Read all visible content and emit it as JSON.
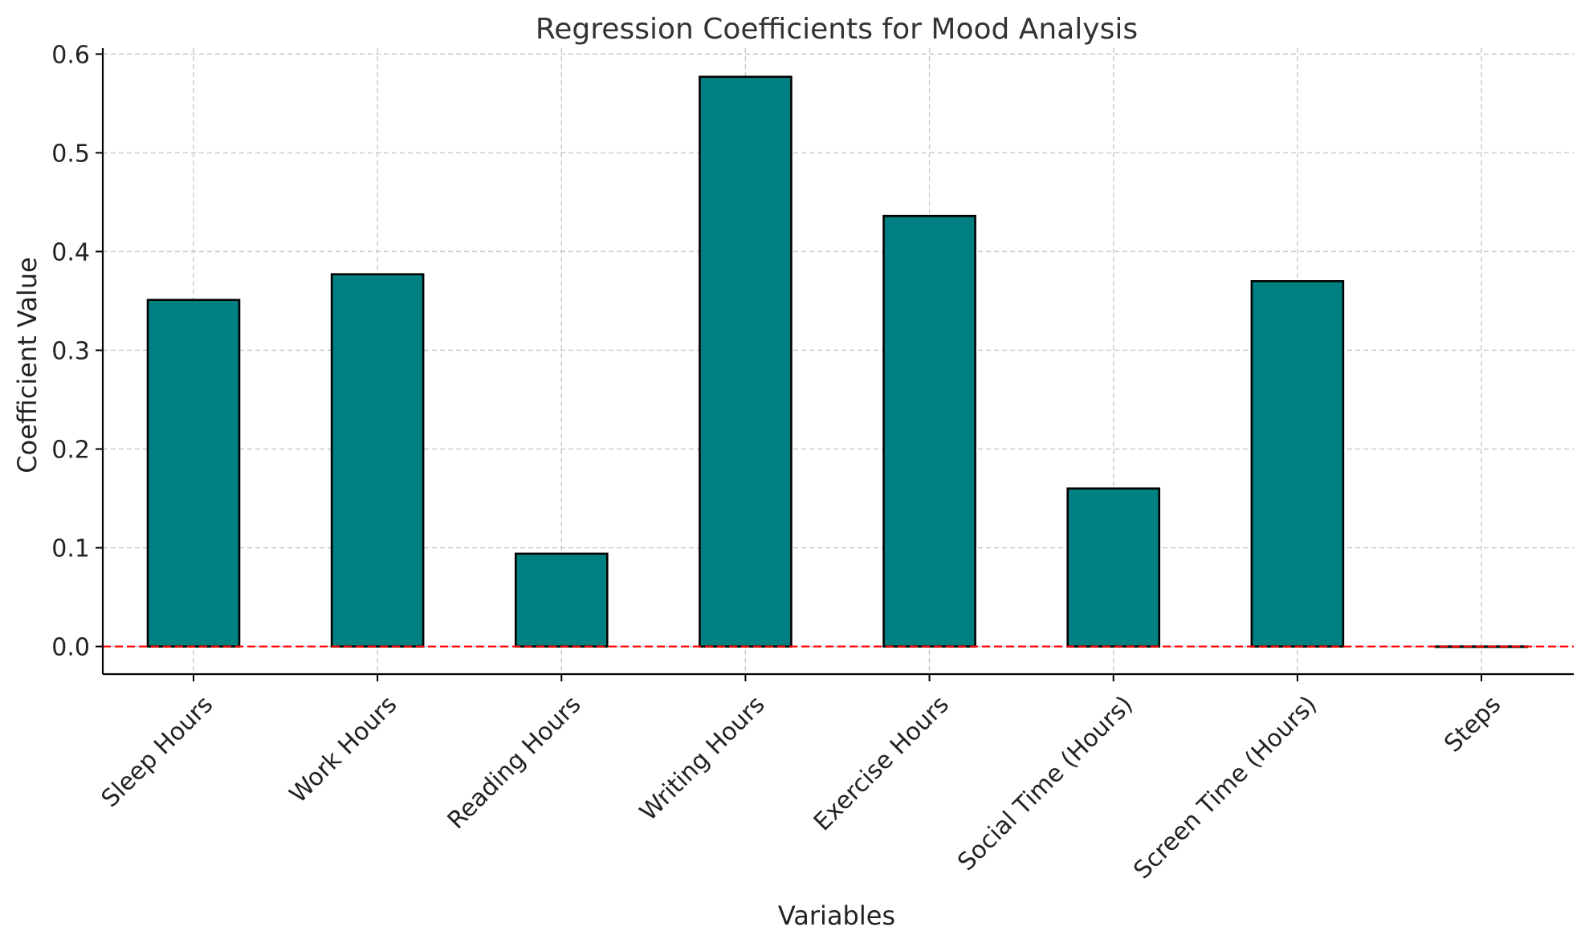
{
  "chart_data": {
    "type": "bar",
    "title": "Regression Coefficients for Mood Analysis",
    "xlabel": "Variables",
    "ylabel": "Coefficient Value",
    "categories": [
      "Sleep Hours",
      "Work Hours",
      "Reading Hours",
      "Writing Hours",
      "Exercise Hours",
      "Social Time (Hours)",
      "Screen Time (Hours)",
      "Steps"
    ],
    "values": [
      0.351,
      0.377,
      0.094,
      0.577,
      0.436,
      0.16,
      0.37,
      0.0
    ],
    "ylim": [
      -0.028,
      0.606
    ],
    "yticks": [
      "0.0",
      "0.1",
      "0.2",
      "0.3",
      "0.4",
      "0.5",
      "0.6"
    ],
    "ytick_values": [
      0.0,
      0.1,
      0.2,
      0.3,
      0.4,
      0.5,
      0.6
    ],
    "grid": true,
    "legend": "none",
    "reference_line": {
      "value": 0.0,
      "style": "dashed",
      "color": "#ff0000"
    },
    "bar_color": "#008080",
    "bar_edge_color": "#000000"
  }
}
